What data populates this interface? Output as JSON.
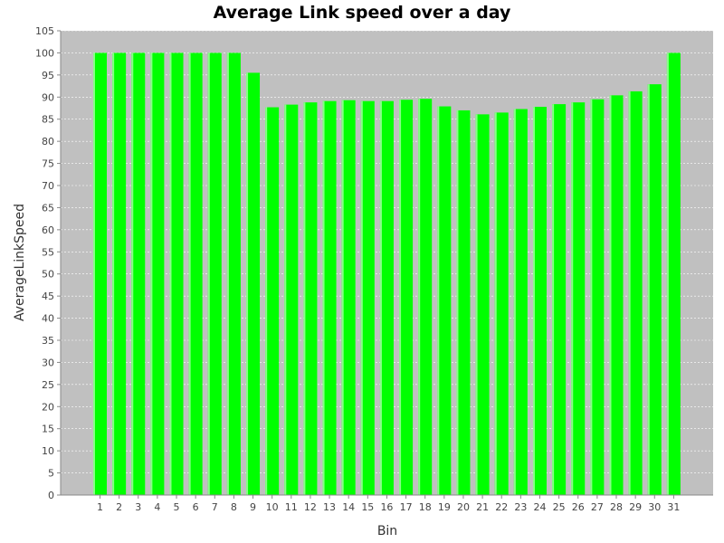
{
  "chart_data": {
    "type": "bar",
    "title": "Average Link speed over a day",
    "xlabel": "Bin",
    "ylabel": "AverageLinkSpeed",
    "categories": [
      "1",
      "2",
      "3",
      "4",
      "5",
      "6",
      "7",
      "8",
      "9",
      "10",
      "11",
      "12",
      "13",
      "14",
      "15",
      "16",
      "17",
      "18",
      "19",
      "20",
      "21",
      "22",
      "23",
      "24",
      "25",
      "26",
      "27",
      "28",
      "29",
      "30",
      "31"
    ],
    "values": [
      100,
      100,
      100,
      100,
      100,
      100,
      100,
      100,
      95.5,
      87.7,
      88.3,
      88.8,
      89.1,
      89.3,
      89.1,
      89.1,
      89.4,
      89.6,
      87.9,
      87.0,
      86.1,
      86.5,
      87.3,
      87.8,
      88.4,
      88.8,
      89.5,
      90.4,
      91.3,
      92.9,
      100
    ],
    "ylim": [
      0,
      105
    ],
    "yticks": [
      "0",
      "5",
      "10",
      "15",
      "20",
      "25",
      "30",
      "35",
      "40",
      "45",
      "50",
      "55",
      "60",
      "65",
      "70",
      "75",
      "80",
      "85",
      "90",
      "95",
      "100",
      "105"
    ],
    "grid": true,
    "colors": {
      "bar": "#00ff00",
      "bar_highlight": "#88ff88",
      "plot_background": "#c0c0c0",
      "grid": "#ffffff"
    }
  }
}
